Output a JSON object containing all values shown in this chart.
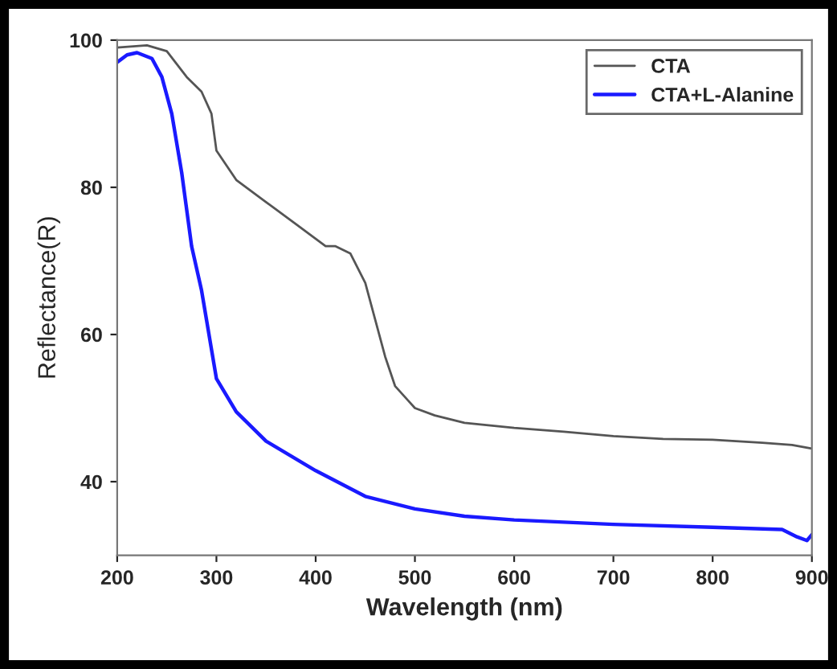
{
  "chart_data": {
    "type": "line",
    "xlabel": "Wavelength (nm)",
    "ylabel": "Reflectance(R)",
    "xlim": [
      200,
      900
    ],
    "ylim": [
      30,
      100
    ],
    "xticks": [
      200,
      300,
      400,
      500,
      600,
      700,
      800,
      900
    ],
    "yticks": [
      40,
      60,
      80,
      100
    ],
    "legend": "top right",
    "grid": false,
    "series": [
      {
        "name": "CTA",
        "color": "#555555",
        "x": [
          200,
          230,
          250,
          270,
          285,
          295,
          300,
          320,
          350,
          380,
          410,
          420,
          435,
          450,
          460,
          470,
          480,
          500,
          520,
          550,
          600,
          650,
          700,
          750,
          800,
          850,
          880,
          900
        ],
        "values": [
          99,
          99.3,
          98.5,
          95,
          93,
          90,
          85,
          81,
          78,
          75,
          72,
          72,
          71,
          67,
          62,
          57,
          53,
          50,
          49,
          48,
          47.3,
          46.8,
          46.2,
          45.8,
          45.7,
          45.3,
          45,
          44.5
        ]
      },
      {
        "name": "CTA+L-Alanine",
        "color": "#1a1aff",
        "x": [
          200,
          210,
          220,
          235,
          245,
          255,
          265,
          275,
          285,
          295,
          300,
          320,
          350,
          400,
          450,
          500,
          550,
          600,
          700,
          800,
          870,
          885,
          895,
          900
        ],
        "values": [
          97,
          98,
          98.3,
          97.5,
          95,
          90,
          82,
          72,
          66,
          58,
          54,
          49.5,
          45.5,
          41.5,
          38,
          36.3,
          35.3,
          34.8,
          34.2,
          33.8,
          33.5,
          32.5,
          32,
          32.8
        ]
      }
    ]
  }
}
